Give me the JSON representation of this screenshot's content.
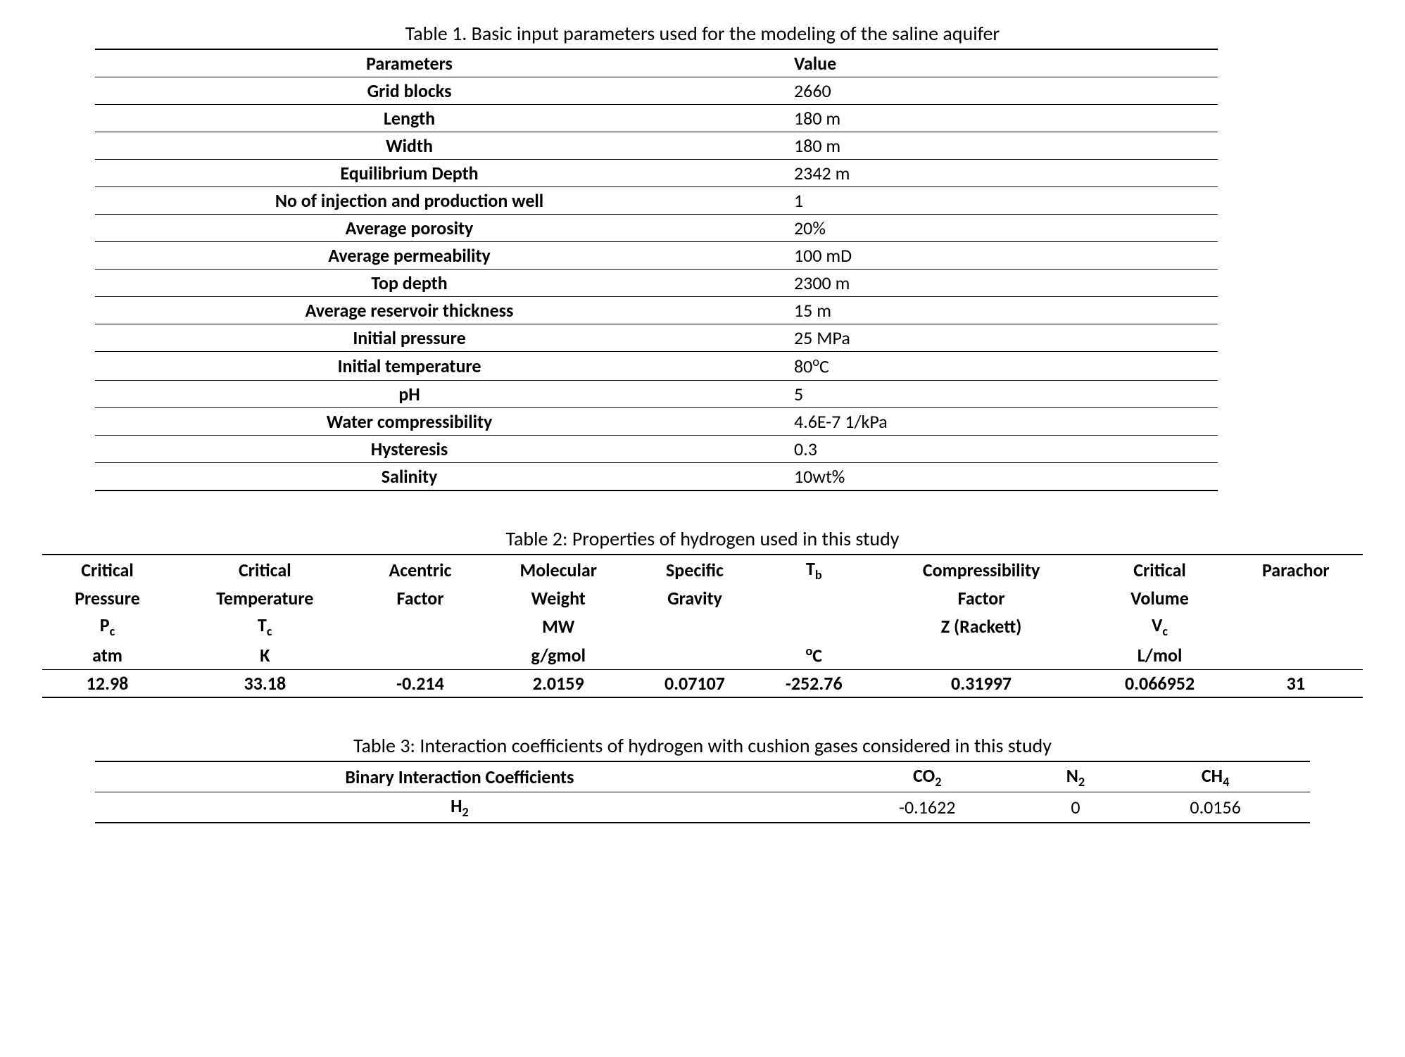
{
  "table1": {
    "caption": "Table 1. Basic input parameters used for the modeling of the saline aquifer",
    "header": {
      "c1": "Parameters",
      "c2": "Value"
    },
    "rows": [
      {
        "param": "Grid blocks",
        "value": "2660"
      },
      {
        "param": "Length",
        "value": "180 m"
      },
      {
        "param": "Width",
        "value": "180 m"
      },
      {
        "param": "Equilibrium Depth",
        "value": "2342 m"
      },
      {
        "param": "No of injection and production well",
        "value": "1"
      },
      {
        "param": "Average porosity",
        "value": "20%"
      },
      {
        "param": "Average permeability",
        "value": "100 mD"
      },
      {
        "param": "Top depth",
        "value": "2300 m"
      },
      {
        "param": "Average reservoir thickness",
        "value": "15 m"
      },
      {
        "param": "Initial pressure",
        "value": "25 MPa"
      },
      {
        "param": "Initial temperature",
        "value": "80°C",
        "value_html": "80<sup>o</sup>C"
      },
      {
        "param": "pH",
        "value": "5"
      },
      {
        "param": "Water compressibility",
        "value": "4.6E-7 1/kPa"
      },
      {
        "param": "Hysteresis",
        "value": "0.3"
      },
      {
        "param": "Salinity",
        "value": "10wt%"
      }
    ]
  },
  "table2": {
    "caption": "Table 2: Properties of hydrogen used in this study",
    "headers": [
      {
        "l1": "Critical",
        "l2": "Pressure",
        "sym": "P",
        "sub": "c",
        "unit": "atm"
      },
      {
        "l1": "Critical",
        "l2": "Temperature",
        "sym": "T",
        "sub": "c",
        "unit": "K"
      },
      {
        "l1": "Acentric",
        "l2": "Factor",
        "sym": "",
        "sub": "",
        "unit": ""
      },
      {
        "l1": "Molecular",
        "l2": "Weight",
        "sym": "MW",
        "sub": "",
        "unit": "g/gmol"
      },
      {
        "l1": "Specific",
        "l2": "Gravity",
        "sym": "",
        "sub": "",
        "unit": ""
      },
      {
        "l1": "T",
        "l1sub": "b",
        "l2": "",
        "sym": "",
        "sub": "",
        "unit": "°C",
        "unit_html": "<sup>o</sup>C"
      },
      {
        "l1": "Compressibility",
        "l2": "Factor",
        "sym": "Z (Rackett)",
        "sub": "",
        "unit": ""
      },
      {
        "l1": "Critical",
        "l2": "Volume",
        "sym": "V",
        "sub": "c",
        "unit": "L/mol"
      },
      {
        "l1": "Parachor",
        "l2": "",
        "sym": "",
        "sub": "",
        "unit": ""
      }
    ],
    "values": [
      "12.98",
      "33.18",
      "-0.214",
      "2.0159",
      "0.07107",
      "-252.76",
      "0.31997",
      "0.066952",
      "31"
    ]
  },
  "table3": {
    "caption": "Table 3: Interaction coefficients of hydrogen with cushion gases considered in this study",
    "headers": {
      "c1": "Binary Interaction Coefficients",
      "c2": "CO",
      "c2sub": "2",
      "c3": "N",
      "c3sub": "2",
      "c4": "CH",
      "c4sub": "4"
    },
    "row": {
      "label": "H",
      "labelsub": "2",
      "v1": "-0.1622",
      "v2": "0",
      "v3": "0.0156"
    }
  },
  "style": {
    "font_family": "Calibri, Arial, sans-serif",
    "body_fontsize": 26,
    "caption_fontsize": 28,
    "text_color": "#000000",
    "background_color": "#ffffff",
    "border_color": "#000000"
  }
}
